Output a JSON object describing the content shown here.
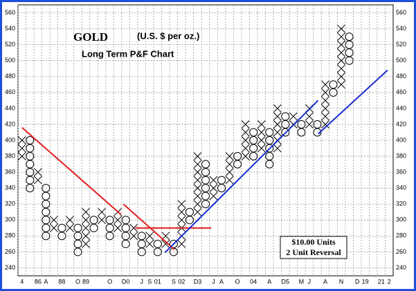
{
  "chart_data": {
    "type": "point-and-figure",
    "title": "GOLD",
    "subtitle": "(U.S. $ per oz.)",
    "chart_label": "Long Term P&F Chart",
    "box_note": [
      "$10.00 Units",
      "2 Unit Reversal"
    ],
    "ylim": [
      230,
      570
    ],
    "yticks": [
      240,
      260,
      280,
      300,
      320,
      340,
      360,
      380,
      400,
      420,
      440,
      460,
      480,
      500,
      520,
      540,
      560
    ],
    "grid": true,
    "categories": [
      "4",
      null,
      "86",
      "A",
      null,
      "88",
      null,
      "O",
      "89",
      null,
      null,
      "O",
      null,
      "D0",
      null,
      "J",
      "S",
      "01",
      null,
      "S",
      "02",
      null,
      "D3",
      null,
      "J",
      "A",
      null,
      "O",
      null,
      "04",
      null,
      "A",
      null,
      "D5",
      null,
      "M",
      "J",
      null,
      "A",
      null,
      "N",
      null,
      "D",
      "19",
      null,
      "21",
      "2"
    ],
    "columns": [
      {
        "box": "X",
        "low": 380,
        "high": 400
      },
      {
        "box": "O",
        "low": 340,
        "high": 400
      },
      {
        "box": "X",
        "low": 350,
        "high": 360
      },
      {
        "box": "O",
        "low": 280,
        "high": 340
      },
      {
        "box": "X",
        "low": 290,
        "high": 300
      },
      {
        "box": "O",
        "low": 280,
        "high": 290
      },
      {
        "box": "X",
        "low": 290,
        "high": 300
      },
      {
        "box": "O",
        "low": 260,
        "high": 290
      },
      {
        "box": "X",
        "low": 270,
        "high": 310
      },
      {
        "box": "O",
        "low": 290,
        "high": 300
      },
      {
        "box": "X",
        "low": 300,
        "high": 310
      },
      {
        "box": "O",
        "low": 280,
        "high": 300
      },
      {
        "box": "X",
        "low": 290,
        "high": 310
      },
      {
        "box": "O",
        "low": 270,
        "high": 300
      },
      {
        "box": "X",
        "low": 280,
        "high": 290
      },
      {
        "box": "O",
        "low": 260,
        "high": 280
      },
      {
        "box": "X",
        "low": 270,
        "high": 280
      },
      {
        "box": "O",
        "low": 260,
        "high": 270
      },
      {
        "box": "X",
        "low": 270,
        "high": 280
      },
      {
        "box": "O",
        "low": 260,
        "high": 270
      },
      {
        "box": "X",
        "low": 270,
        "high": 320
      },
      {
        "box": "O",
        "low": 300,
        "high": 310
      },
      {
        "box": "X",
        "low": 310,
        "high": 380
      },
      {
        "box": "O",
        "low": 320,
        "high": 370
      },
      {
        "box": "X",
        "low": 330,
        "high": 350
      },
      {
        "box": "O",
        "low": 340,
        "high": 350
      },
      {
        "box": "X",
        "low": 350,
        "high": 380
      },
      {
        "box": "O",
        "low": 370,
        "high": 380
      },
      {
        "box": "X",
        "low": 380,
        "high": 420
      },
      {
        "box": "O",
        "low": 380,
        "high": 410
      },
      {
        "box": "X",
        "low": 390,
        "high": 420
      },
      {
        "box": "O",
        "low": 370,
        "high": 410
      },
      {
        "box": "X",
        "low": 390,
        "high": 440
      },
      {
        "box": "O",
        "low": 410,
        "high": 430
      },
      {
        "box": "X",
        "low": 420,
        "high": 430
      },
      {
        "box": "O",
        "low": 410,
        "high": 420
      },
      {
        "box": "X",
        "low": 420,
        "high": 440
      },
      {
        "box": "O",
        "low": 410,
        "high": 420
      },
      {
        "box": "X",
        "low": 420,
        "high": 470
      },
      {
        "box": "O",
        "low": 460,
        "high": 470
      },
      {
        "box": "X",
        "low": 470,
        "high": 540
      },
      {
        "box": "O",
        "low": 500,
        "high": 530
      }
    ],
    "trendlines": [
      {
        "color": "#e02020",
        "from": [
          0,
          416
        ],
        "to": [
          12.4,
          307
        ]
      },
      {
        "color": "#e02020",
        "from": [
          12.7,
          320
        ],
        "to": [
          19.1,
          263
        ]
      },
      {
        "color": "#e02020",
        "from": [
          14.2,
          290
        ],
        "to": [
          23.7,
          290
        ]
      },
      {
        "color": "#1a2bd0",
        "from": [
          17.9,
          259
        ],
        "to": [
          37.1,
          450
        ]
      },
      {
        "color": "#1a2bd0",
        "from": [
          37.1,
          408
        ],
        "to": [
          45.8,
          488
        ]
      }
    ]
  }
}
